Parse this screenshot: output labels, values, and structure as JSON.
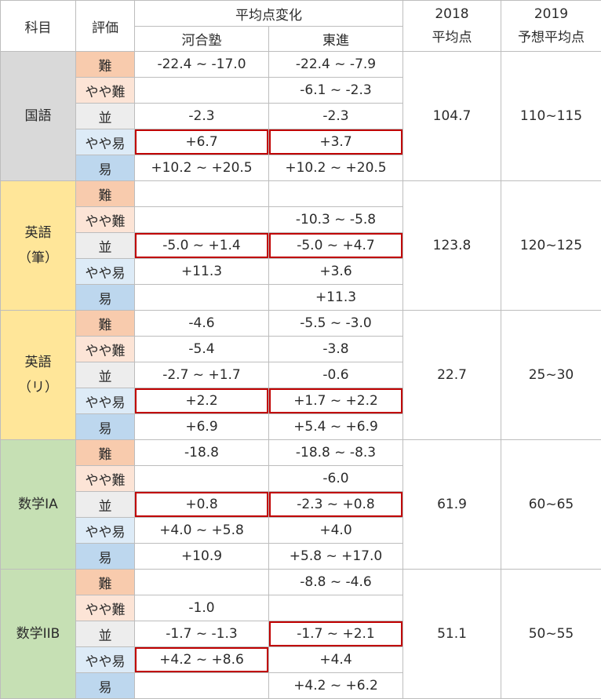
{
  "headers": {
    "subject": "科目",
    "evaluation": "評価",
    "change_group": "平均点変化",
    "kawai": "河合塾",
    "toshin": "東進",
    "y2018_a": "2018",
    "y2018_b": "平均点",
    "y2019_a": "2019",
    "y2019_b": "予想平均点"
  },
  "colors": {
    "hard": "#f8cbad",
    "slightly_hard": "#fce4d6",
    "average": "#ededed",
    "slightly_easy": "#ddebf7",
    "easy": "#bdd7ee",
    "highlight_border": "#c00000"
  },
  "sections": [
    {
      "subject_lines": [
        "国語"
      ],
      "color": "#d9d9d9",
      "avg2018": "104.7",
      "pred2019": "110~115",
      "rows": [
        {
          "eval": "難",
          "level": "hard",
          "kawai": "-22.4 ~ -17.0",
          "toshin": "-22.4 ~ -7.9"
        },
        {
          "eval": "やや難",
          "level": "slightly_hard",
          "kawai": "",
          "toshin": "-6.1 ~ -2.3"
        },
        {
          "eval": "並",
          "level": "average",
          "kawai": "-2.3",
          "toshin": "-2.3"
        },
        {
          "eval": "やや易",
          "level": "slightly_easy",
          "kawai": "+6.7",
          "toshin": "+3.7",
          "hl_kawai": true,
          "hl_toshin": true
        },
        {
          "eval": "易",
          "level": "easy",
          "kawai": "+10.2 ~ +20.5",
          "toshin": "+10.2 ~ +20.5"
        }
      ]
    },
    {
      "subject_lines": [
        "英語",
        "（筆）"
      ],
      "color": "#ffe699",
      "avg2018": "123.8",
      "pred2019": "120~125",
      "rows": [
        {
          "eval": "難",
          "level": "hard",
          "kawai": "",
          "toshin": ""
        },
        {
          "eval": "やや難",
          "level": "slightly_hard",
          "kawai": "",
          "toshin": "-10.3 ~ -5.8"
        },
        {
          "eval": "並",
          "level": "average",
          "kawai": "-5.0 ~ +1.4",
          "toshin": "-5.0 ~ +4.7",
          "hl_kawai": true,
          "hl_toshin": true
        },
        {
          "eval": "やや易",
          "level": "slightly_easy",
          "kawai": "+11.3",
          "toshin": "+3.6"
        },
        {
          "eval": "易",
          "level": "easy",
          "kawai": "",
          "toshin": "+11.3"
        }
      ]
    },
    {
      "subject_lines": [
        "英語",
        "（リ）"
      ],
      "color": "#ffe699",
      "avg2018": "22.7",
      "pred2019": "25~30",
      "rows": [
        {
          "eval": "難",
          "level": "hard",
          "kawai": "-4.6",
          "toshin": "-5.5 ~ -3.0"
        },
        {
          "eval": "やや難",
          "level": "slightly_hard",
          "kawai": "-5.4",
          "toshin": "-3.8"
        },
        {
          "eval": "並",
          "level": "average",
          "kawai": "-2.7 ~ +1.7",
          "toshin": "-0.6"
        },
        {
          "eval": "やや易",
          "level": "slightly_easy",
          "kawai": "+2.2",
          "toshin": "+1.7 ~ +2.2",
          "hl_kawai": true,
          "hl_toshin": true
        },
        {
          "eval": "易",
          "level": "easy",
          "kawai": "+6.9",
          "toshin": "+5.4 ~ +6.9"
        }
      ]
    },
    {
      "subject_lines": [
        "数学IA"
      ],
      "color": "#c6e0b4",
      "avg2018": "61.9",
      "pred2019": "60~65",
      "rows": [
        {
          "eval": "難",
          "level": "hard",
          "kawai": "-18.8",
          "toshin": "-18.8 ~ -8.3"
        },
        {
          "eval": "やや難",
          "level": "slightly_hard",
          "kawai": "",
          "toshin": "-6.0"
        },
        {
          "eval": "並",
          "level": "average",
          "kawai": "+0.8",
          "toshin": "-2.3 ~ +0.8",
          "hl_kawai": true,
          "hl_toshin": true
        },
        {
          "eval": "やや易",
          "level": "slightly_easy",
          "kawai": "+4.0 ~ +5.8",
          "toshin": "+4.0"
        },
        {
          "eval": "易",
          "level": "easy",
          "kawai": "+10.9",
          "toshin": "+5.8 ~ +17.0"
        }
      ]
    },
    {
      "subject_lines": [
        "数学IIB"
      ],
      "color": "#c6e0b4",
      "avg2018": "51.1",
      "pred2019": "50~55",
      "rows": [
        {
          "eval": "難",
          "level": "hard",
          "kawai": "",
          "toshin": "-8.8 ~ -4.6"
        },
        {
          "eval": "やや難",
          "level": "slightly_hard",
          "kawai": "-1.0",
          "toshin": ""
        },
        {
          "eval": "並",
          "level": "average",
          "kawai": "-1.7 ~ -1.3",
          "toshin": "-1.7 ~ +2.1",
          "hl_toshin": true
        },
        {
          "eval": "やや易",
          "level": "slightly_easy",
          "kawai": "+4.2 ~ +8.6",
          "toshin": "+4.4",
          "hl_kawai": true
        },
        {
          "eval": "易",
          "level": "easy",
          "kawai": "",
          "toshin": "+4.2 ~ +6.2"
        }
      ]
    }
  ]
}
